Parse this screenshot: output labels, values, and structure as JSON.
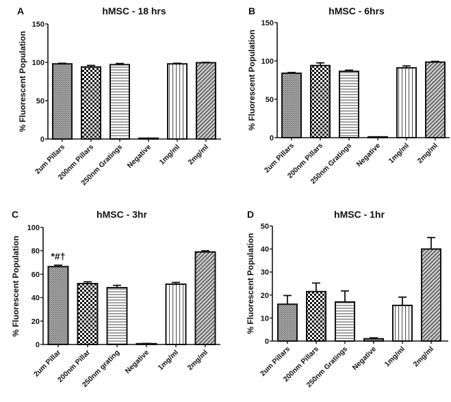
{
  "chart_data": [
    {
      "type": "bar",
      "panel_label": "A",
      "title": "hMSC - 18 hrs",
      "ylabel": "% Fluorescent Population",
      "xlabel": "",
      "ylim": [
        0,
        150
      ],
      "yticks": [
        0,
        50,
        100,
        150
      ],
      "categories": [
        "2um Pillars",
        "200nm Pillars",
        "250nm Gratings",
        "Negative",
        "1mg/ml",
        "2mg/ml"
      ],
      "values": [
        98,
        94,
        97,
        0.5,
        98,
        99.5
      ],
      "errors": [
        0.8,
        2,
        1.5,
        0.2,
        0.8,
        0.5
      ],
      "annotations": []
    },
    {
      "type": "bar",
      "panel_label": "B",
      "title": "hMSC - 6hrs",
      "ylabel": "% Fluorescent Population",
      "xlabel": "",
      "ylim": [
        0,
        150
      ],
      "yticks": [
        0,
        50,
        100,
        150
      ],
      "categories": [
        "2um Pillars",
        "200nm Pillars",
        "250nm Gratings",
        "Negative",
        "1mg/ml",
        "2mg/ml"
      ],
      "values": [
        84,
        94,
        86.5,
        0.5,
        91,
        98.5
      ],
      "errors": [
        1,
        3.5,
        1.5,
        0.2,
        2.5,
        1
      ],
      "annotations": []
    },
    {
      "type": "bar",
      "panel_label": "C",
      "title": "hMSC - 3hr",
      "ylabel": "% Fluorescent Population",
      "xlabel": "",
      "ylim": [
        0,
        100
      ],
      "yticks": [
        0,
        20,
        40,
        60,
        80,
        100
      ],
      "categories": [
        "2um Pillar",
        "200nm Pillar",
        "250nm grating",
        "Negative",
        "1mg/ml",
        "2mg/ml"
      ],
      "values": [
        66.5,
        52,
        48.5,
        0.7,
        51.5,
        79
      ],
      "errors": [
        1.2,
        1.5,
        2,
        0.2,
        1.5,
        1
      ],
      "annotations": [
        {
          "category": "2um Pillar",
          "text": "*#†"
        }
      ]
    },
    {
      "type": "bar",
      "panel_label": "D",
      "title": "hMSC - 1hr",
      "ylabel": "% Fluorescent Population",
      "xlabel": "",
      "ylim": [
        0,
        50
      ],
      "yticks": [
        0,
        10,
        20,
        30,
        40,
        50
      ],
      "categories": [
        "2um Pillars",
        "200nm Pillars",
        "250nm Gratings",
        "Negative",
        "1mg/ml",
        "2mg/ml"
      ],
      "values": [
        16,
        21.5,
        17,
        1,
        15.5,
        40
      ],
      "errors": [
        3.8,
        3.7,
        4.8,
        0.4,
        3.6,
        5
      ],
      "annotations": []
    }
  ],
  "colors": {
    "ink": "#111111",
    "grey_fill": "#9a9a9a",
    "hatch": "#555555"
  }
}
